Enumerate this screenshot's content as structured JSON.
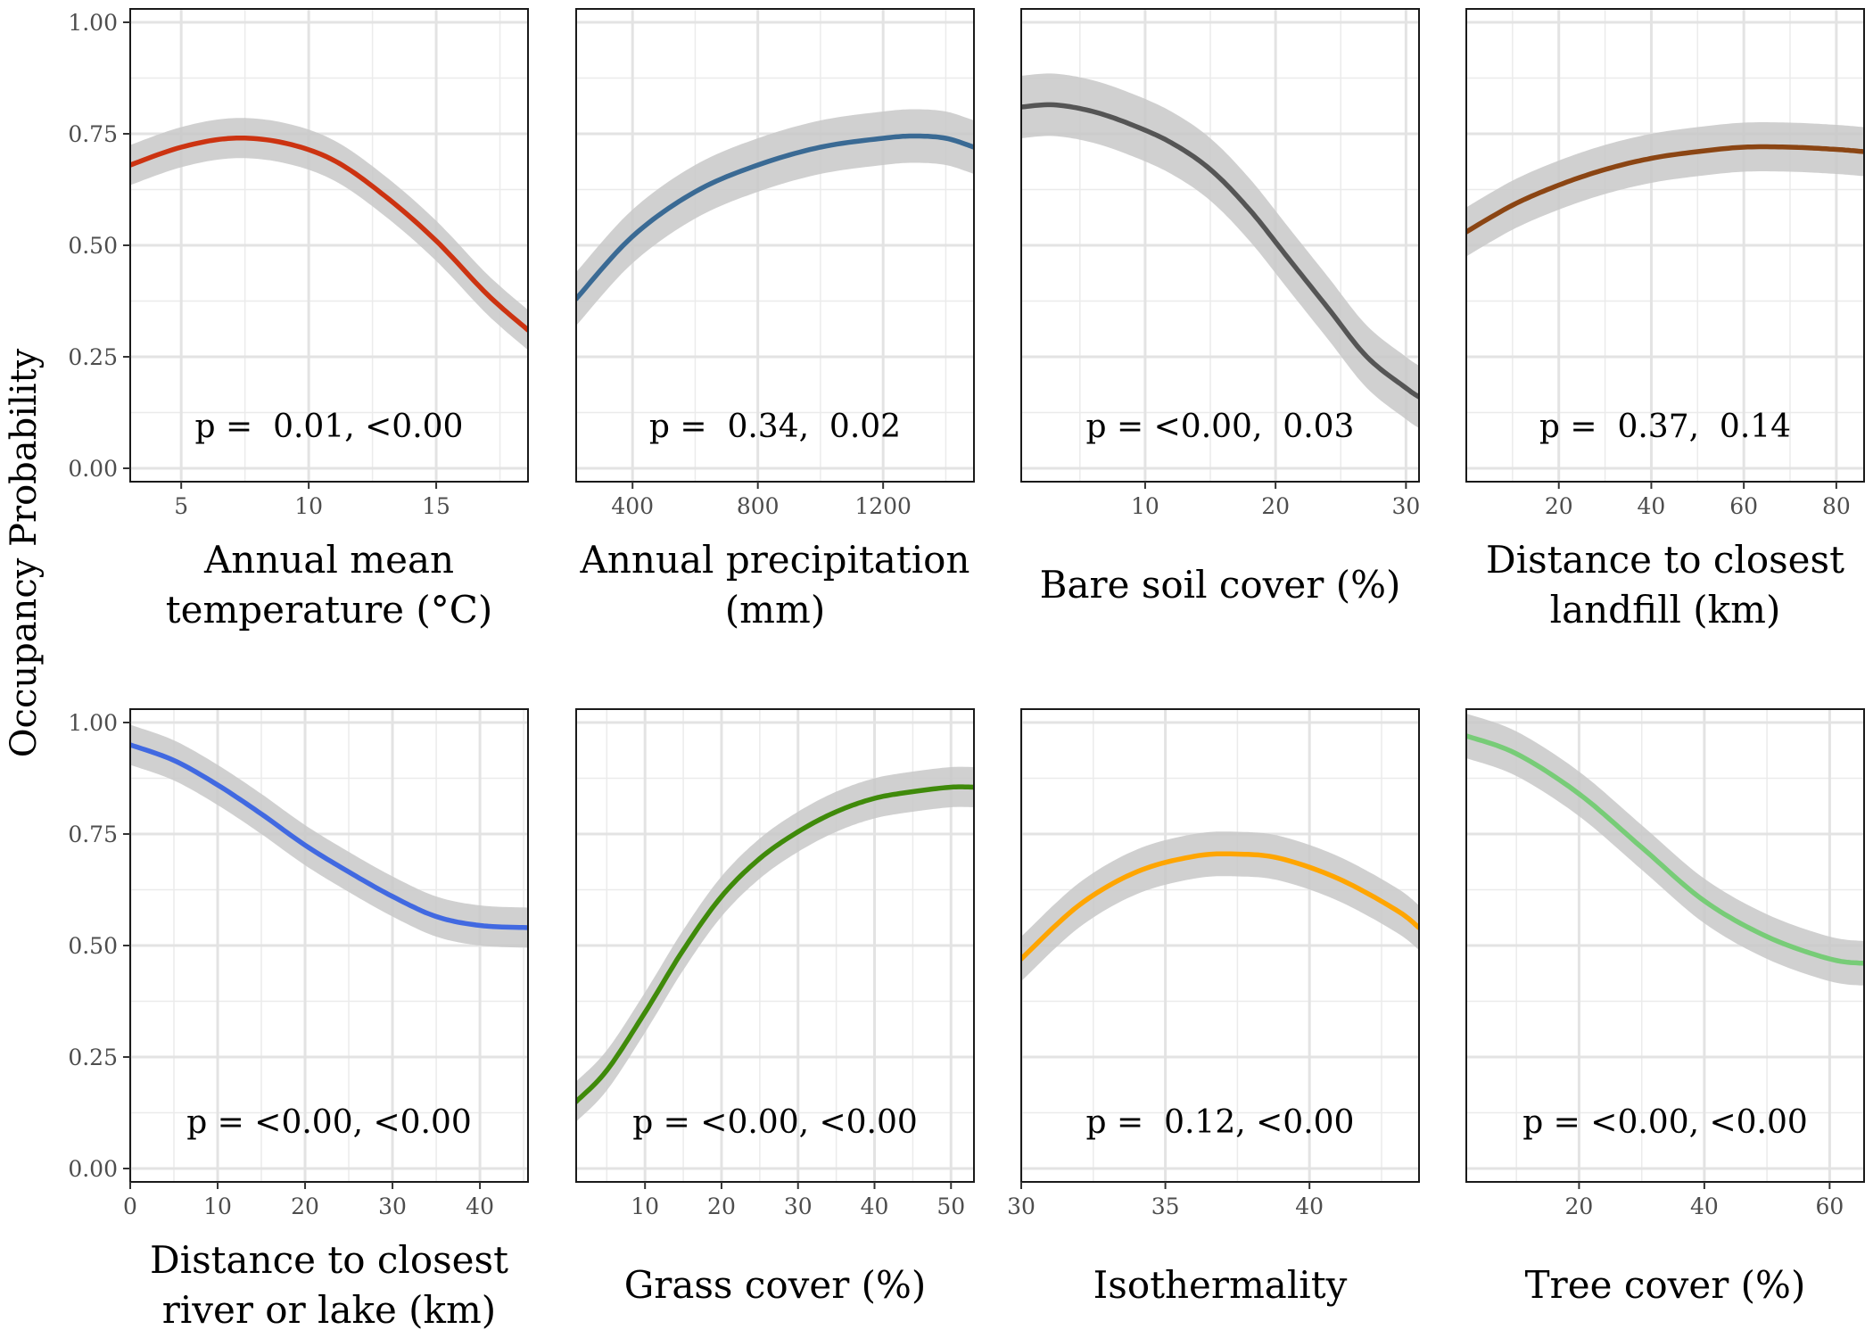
{
  "y_axis_title": "Occupancy Probability",
  "chart_data": [
    {
      "type": "line",
      "xlabel": [
        "Annual mean",
        "temperature (°C)"
      ],
      "ylabel": "Occupancy Probability",
      "annotation": "p =  0.01, <0.00",
      "color": "#CC3311",
      "xlim": [
        3,
        18.6
      ],
      "ylim": [
        -0.03,
        1.03
      ],
      "xticks": [
        5,
        10,
        15
      ],
      "yticks": [
        0.0,
        0.25,
        0.5,
        0.75,
        1.0
      ],
      "ytick_labels": [
        "0.00",
        "0.25",
        "0.50",
        "0.75",
        "1.00"
      ],
      "x": [
        3,
        5,
        7,
        9,
        11,
        13,
        15,
        17,
        18.6
      ],
      "y": [
        0.68,
        0.72,
        0.74,
        0.73,
        0.69,
        0.61,
        0.51,
        0.39,
        0.31
      ],
      "band": 0.045
    },
    {
      "type": "line",
      "xlabel": [
        "Annual precipitation",
        "(mm)"
      ],
      "ylabel": "",
      "annotation": "p =  0.34,  0.02",
      "color": "#3A6A94",
      "xlim": [
        220,
        1490
      ],
      "ylim": [
        -0.03,
        1.03
      ],
      "xticks": [
        400,
        800,
        1200
      ],
      "yticks": [
        0.0,
        0.25,
        0.5,
        0.75,
        1.0
      ],
      "x": [
        220,
        400,
        600,
        800,
        1000,
        1200,
        1300,
        1400,
        1490
      ],
      "y": [
        0.38,
        0.52,
        0.62,
        0.68,
        0.72,
        0.74,
        0.745,
        0.74,
        0.72
      ],
      "band": 0.06
    },
    {
      "type": "line",
      "xlabel": [
        "Bare soil cover (%)"
      ],
      "ylabel": "",
      "annotation": "p = <0.00,  0.03",
      "color": "#555555",
      "xlim": [
        0.5,
        31
      ],
      "ylim": [
        -0.03,
        1.03
      ],
      "xticks": [
        10,
        20,
        30
      ],
      "yticks": [
        0.0,
        0.25,
        0.5,
        0.75,
        1.0
      ],
      "x": [
        0.5,
        3,
        6,
        9,
        12,
        15,
        18,
        21,
        24,
        27,
        30,
        31
      ],
      "y": [
        0.81,
        0.815,
        0.8,
        0.77,
        0.73,
        0.67,
        0.58,
        0.47,
        0.36,
        0.25,
        0.18,
        0.16
      ],
      "band": 0.07
    },
    {
      "type": "line",
      "xlabel": [
        "Distance to closest",
        "landfill (km)"
      ],
      "ylabel": "",
      "annotation": "p =  0.37,  0.14",
      "color": "#8B4513",
      "xlim": [
        0,
        86
      ],
      "ylim": [
        -0.03,
        1.03
      ],
      "xticks": [
        20,
        40,
        60,
        80
      ],
      "yticks": [
        0.0,
        0.25,
        0.5,
        0.75,
        1.0
      ],
      "x": [
        0,
        10,
        20,
        30,
        40,
        50,
        60,
        70,
        80,
        86
      ],
      "y": [
        0.53,
        0.59,
        0.635,
        0.67,
        0.695,
        0.71,
        0.72,
        0.72,
        0.715,
        0.71
      ],
      "band": 0.055
    },
    {
      "type": "line",
      "xlabel": [
        "Distance to closest",
        "river or lake (km)"
      ],
      "ylabel": "",
      "annotation": "p = <0.00, <0.00",
      "color": "#4169E1",
      "xlim": [
        0,
        45.5
      ],
      "ylim": [
        -0.03,
        1.03
      ],
      "xticks": [
        0,
        10,
        20,
        30,
        40
      ],
      "yticks": [
        0.0,
        0.25,
        0.5,
        0.75,
        1.0
      ],
      "ytick_labels": [
        "0.00",
        "0.25",
        "0.50",
        "0.75",
        "1.00"
      ],
      "x": [
        0,
        5,
        10,
        15,
        20,
        25,
        30,
        35,
        40,
        45.5
      ],
      "y": [
        0.95,
        0.915,
        0.86,
        0.795,
        0.725,
        0.665,
        0.61,
        0.565,
        0.545,
        0.54
      ],
      "band": 0.045
    },
    {
      "type": "line",
      "xlabel": [
        "Grass cover (%)"
      ],
      "ylabel": "",
      "annotation": "p = <0.00, <0.00",
      "color": "#3F8A0A",
      "xlim": [
        1,
        53
      ],
      "ylim": [
        -0.03,
        1.03
      ],
      "xticks": [
        10,
        20,
        30,
        40,
        50
      ],
      "yticks": [
        0.0,
        0.25,
        0.5,
        0.75,
        1.0
      ],
      "x": [
        1,
        5,
        10,
        15,
        20,
        25,
        30,
        35,
        40,
        45,
        50,
        53
      ],
      "y": [
        0.15,
        0.22,
        0.35,
        0.49,
        0.61,
        0.695,
        0.755,
        0.8,
        0.83,
        0.845,
        0.855,
        0.855
      ],
      "band": 0.045
    },
    {
      "type": "line",
      "xlabel": [
        "Isothermality"
      ],
      "ylabel": "",
      "annotation": "p =  0.12, <0.00",
      "color": "#FFA500",
      "xlim": [
        30,
        43.8
      ],
      "ylim": [
        -0.03,
        1.03
      ],
      "xticks": [
        30,
        35,
        40
      ],
      "yticks": [
        0.0,
        0.25,
        0.5,
        0.75,
        1.0
      ],
      "x": [
        30,
        32,
        34,
        36,
        37.5,
        39,
        41,
        43,
        43.8
      ],
      "y": [
        0.47,
        0.59,
        0.665,
        0.7,
        0.705,
        0.695,
        0.65,
        0.58,
        0.54
      ],
      "band": 0.05
    },
    {
      "type": "line",
      "xlabel": [
        "Tree cover (%)"
      ],
      "ylabel": "",
      "annotation": "p = <0.00, <0.00",
      "color": "#77CC77",
      "xlim": [
        2,
        65.5
      ],
      "ylim": [
        -0.03,
        1.03
      ],
      "xticks": [
        20,
        40,
        60
      ],
      "yticks": [
        0.0,
        0.25,
        0.5,
        0.75,
        1.0
      ],
      "x": [
        2,
        10,
        20,
        30,
        40,
        50,
        60,
        65.5
      ],
      "y": [
        0.97,
        0.93,
        0.84,
        0.72,
        0.6,
        0.52,
        0.47,
        0.46
      ],
      "band": 0.05
    }
  ]
}
